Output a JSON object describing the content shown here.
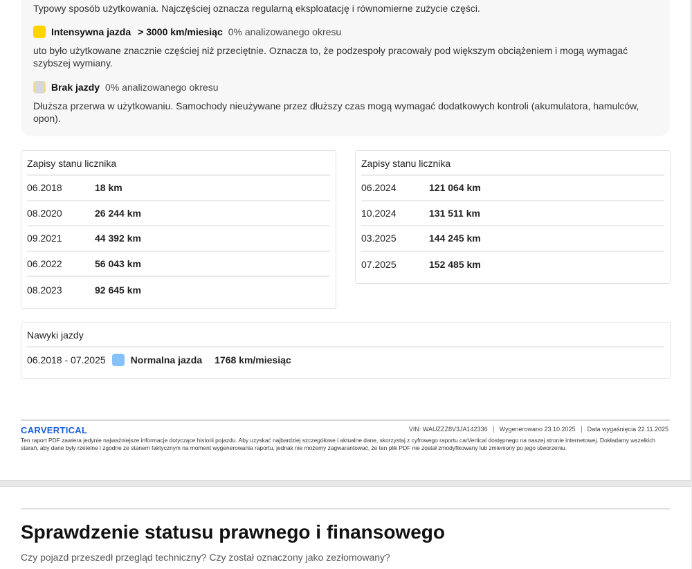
{
  "usage": {
    "normal_desc": "Typowy sposób użytkowania. Najczęściej oznacza regularną eksploatację i równomierne zużycie części.",
    "intensive": {
      "label": "Intensywna jazda",
      "range": "> 3000 km/miesiąc",
      "share": "0% analizowanego okresu",
      "color": "#ffd400",
      "desc": "uto było użytkowane znacznie częściej niż przeciętnie. Oznacza to, że podzespoły pracowały pod większym obciążeniem i mogą wymagać szybszej wymiany."
    },
    "none": {
      "label": "Brak jazdy",
      "share": "0% analizowanego okresu",
      "color": "#e8e2b0",
      "desc": "Dłuższa przerwa w użytkowaniu. Samochody nieużywane przez dłuższy czas mogą wymagać dodatkowych kontroli (akumulatora, hamulców, opon)."
    }
  },
  "odometer_left": {
    "title": "Zapisy stanu licznika",
    "rows": [
      {
        "date": "06.2018",
        "km": "18 km"
      },
      {
        "date": "08.2020",
        "km": "26 244 km"
      },
      {
        "date": "09.2021",
        "km": "44 392 km"
      },
      {
        "date": "06.2022",
        "km": "56 043 km"
      },
      {
        "date": "08.2023",
        "km": "92 645 km"
      }
    ]
  },
  "odometer_right": {
    "title": "Zapisy stanu licznika",
    "rows": [
      {
        "date": "06.2024",
        "km": "121 064 km"
      },
      {
        "date": "10.2024",
        "km": "131 511 km"
      },
      {
        "date": "03.2025",
        "km": "144 245 km"
      },
      {
        "date": "07.2025",
        "km": "152 485 km"
      }
    ]
  },
  "habits": {
    "title": "Nawyki jazdy",
    "period": "06.2018 - 07.2025",
    "label": "Normalna jazda",
    "value": "1768 km/miesiąc",
    "color": "#86c1fb"
  },
  "footer": {
    "logo": "CARVERTICAL",
    "vin": "VIN: WAUZZZ8V3JA142336",
    "generated": "Wygenerowano 23.10.2025",
    "expires": "Data wygaśnięcia 22.11.2025",
    "disclaimer": "Ten raport PDF zawiera jedynie najważniejsze informacje dotyczące historii pojazdu. Aby uzyskać najbardziej szczegółowe i aktualne dane, skorzystaj z cyfrowego raportu carVertical dostępnego na naszej stronie internetowej. Dokładamy wszelkich starań, aby dane były rzetelne i zgodne ze stanem faktycznym na moment wygenerowania raportu, jednak nie możemy zagwarantować, że ten plik PDF nie został zmodyfikowany lub zmieniony po jego utworzeniu."
  },
  "next_section": {
    "title": "Sprawdzenie statusu prawnego i finansowego",
    "subtitle": "Czy pojazd przeszedł przegląd techniczny? Czy został oznaczony jako zezłomowany?"
  }
}
